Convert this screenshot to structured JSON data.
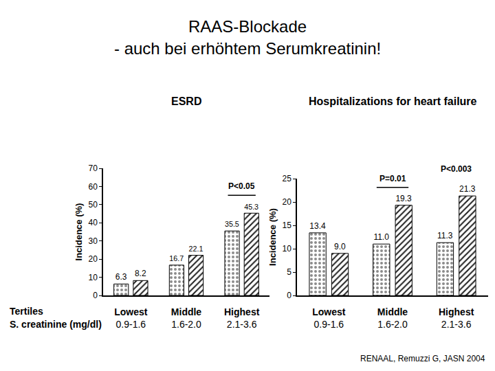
{
  "slide": {
    "title": [
      "RAAS-Blockade",
      "- auch bei erhöhtem Serumkreatinin!"
    ],
    "row_labels": [
      "Tertiles",
      "S. creatinine (mg/dl)"
    ],
    "source": "RENAAL, Remuzzi G, JASN 2004"
  },
  "chart_data": [
    {
      "type": "bar",
      "title": "ESRD",
      "ylabel": "Incidence (%)",
      "categories": [
        "Lowest",
        "Middle",
        "Highest"
      ],
      "creatinine": [
        "0.9-1.6",
        "1.6-2.0",
        "2.1-3.6"
      ],
      "series": [
        {
          "color": "#8c8c8c",
          "marker": "dots",
          "values": [
            6.3,
            16.7,
            35.5
          ]
        },
        {
          "color": "#222222",
          "marker": "hatch",
          "values": [
            8.2,
            22.1,
            45.3
          ]
        }
      ],
      "ylim": [
        0,
        70
      ],
      "yticks": [
        0,
        10,
        20,
        30,
        40,
        50,
        60,
        70
      ],
      "data_labels": true,
      "annotations": [
        {
          "category": "Highest",
          "text": "P<0.05"
        }
      ]
    },
    {
      "type": "bar",
      "title": "Hospitalizations for heart failure",
      "ylabel": "Incidence (%)",
      "categories": [
        "Lowest",
        "Middle",
        "Highest"
      ],
      "creatinine": [
        "0.9-1.6",
        "1.6-2.0",
        "2.1-3.6"
      ],
      "series": [
        {
          "color": "#8c8c8c",
          "marker": "dots",
          "values": [
            13.4,
            11.0,
            11.3
          ],
          "value_labels": [
            "13.4",
            "11.0",
            "11.3"
          ]
        },
        {
          "color": "#222222",
          "marker": "hatch",
          "values": [
            9.0,
            19.3,
            21.3
          ],
          "value_labels": [
            "9.0",
            "19.3",
            "21.3"
          ]
        }
      ],
      "ylim": [
        0,
        25
      ],
      "yticks": [
        0,
        5,
        10,
        15,
        20,
        25
      ],
      "data_labels": true,
      "annotations": [
        {
          "category": "Middle",
          "text": "P=0.01"
        },
        {
          "category": "Highest",
          "text": "P<0.003"
        }
      ]
    }
  ]
}
